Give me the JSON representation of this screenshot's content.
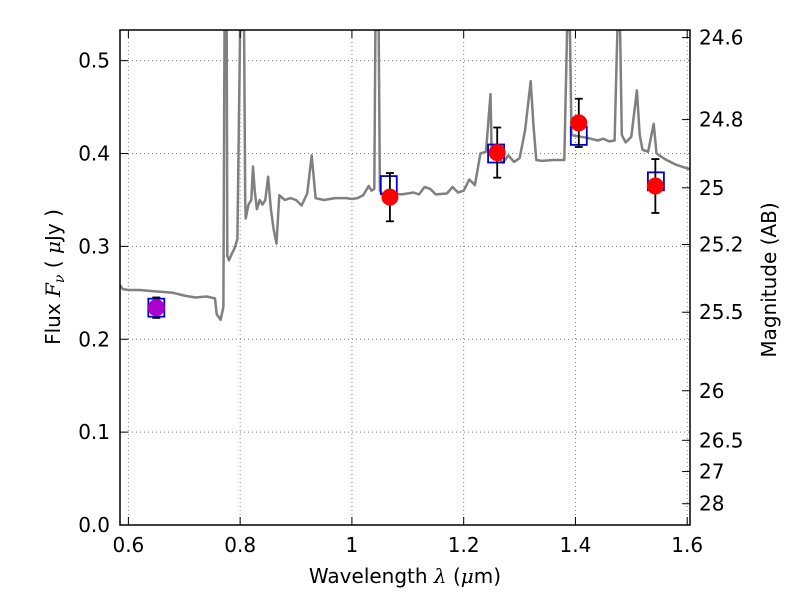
{
  "chart_data": {
    "type": "line",
    "xlabel": {
      "pre": "Wavelength ",
      "sym": "λ",
      "open": " (",
      "mu": "μ",
      "unit": "m)"
    },
    "ylabel": {
      "pre": "Flux ",
      "sym": "F",
      "sub": "ν",
      "open": " ( ",
      "mu": "μ",
      "unit": "Jy )"
    },
    "y2label": "Magnitude (AB)",
    "xlim": [
      0.585,
      1.605
    ],
    "ylim": [
      0.0,
      0.533
    ],
    "grid": true,
    "x_ticks": [
      {
        "value": 0.6,
        "label": "0.6"
      },
      {
        "value": 0.8,
        "label": "0.8"
      },
      {
        "value": 1.0,
        "label": "1"
      },
      {
        "value": 1.2,
        "label": "1.2"
      },
      {
        "value": 1.4,
        "label": "1.4"
      },
      {
        "value": 1.6,
        "label": "1.6"
      }
    ],
    "y_ticks": [
      {
        "value": 0.0,
        "label": "0.0"
      },
      {
        "value": 0.1,
        "label": "0.1"
      },
      {
        "value": 0.2,
        "label": "0.2"
      },
      {
        "value": 0.3,
        "label": "0.3"
      },
      {
        "value": 0.4,
        "label": "0.4"
      },
      {
        "value": 0.5,
        "label": "0.5"
      }
    ],
    "y2_ticks": [
      {
        "mag": 24.6,
        "label": "24.6"
      },
      {
        "mag": 24.8,
        "label": "24.8"
      },
      {
        "mag": 25.0,
        "label": "25"
      },
      {
        "mag": 25.2,
        "label": "25.2"
      },
      {
        "mag": 25.5,
        "label": "25.5"
      },
      {
        "mag": 26.0,
        "label": "26"
      },
      {
        "mag": 26.5,
        "label": "26.5"
      },
      {
        "mag": 27.0,
        "label": "27"
      },
      {
        "mag": 28.0,
        "label": "28"
      }
    ],
    "colors": {
      "model": "#808080",
      "model_photometry": "#0000cc",
      "observed": "#ff0000",
      "observed_violet": "#aa00cc",
      "errorbar": "#000000",
      "grid": "#7f7f7f"
    },
    "model_spectrum": [
      [
        0.585,
        0.258
      ],
      [
        0.59,
        0.254
      ],
      [
        0.6,
        0.253
      ],
      [
        0.62,
        0.253
      ],
      [
        0.64,
        0.252
      ],
      [
        0.66,
        0.251
      ],
      [
        0.68,
        0.25
      ],
      [
        0.7,
        0.247
      ],
      [
        0.72,
        0.245
      ],
      [
        0.74,
        0.246
      ],
      [
        0.755,
        0.244
      ],
      [
        0.758,
        0.227
      ],
      [
        0.765,
        0.221
      ],
      [
        0.77,
        0.235
      ],
      [
        0.772,
        0.533
      ],
      [
        0.776,
        0.533
      ],
      [
        0.777,
        0.29
      ],
      [
        0.78,
        0.285
      ],
      [
        0.785,
        0.292
      ],
      [
        0.79,
        0.298
      ],
      [
        0.795,
        0.308
      ],
      [
        0.8,
        0.533
      ],
      [
        0.807,
        0.533
      ],
      [
        0.809,
        0.35
      ],
      [
        0.81,
        0.33
      ],
      [
        0.815,
        0.345
      ],
      [
        0.82,
        0.35
      ],
      [
        0.823,
        0.386
      ],
      [
        0.826,
        0.36
      ],
      [
        0.83,
        0.34
      ],
      [
        0.835,
        0.35
      ],
      [
        0.84,
        0.345
      ],
      [
        0.845,
        0.35
      ],
      [
        0.85,
        0.375
      ],
      [
        0.855,
        0.34
      ],
      [
        0.86,
        0.318
      ],
      [
        0.865,
        0.303
      ],
      [
        0.87,
        0.355
      ],
      [
        0.88,
        0.35
      ],
      [
        0.89,
        0.352
      ],
      [
        0.9,
        0.35
      ],
      [
        0.91,
        0.344
      ],
      [
        0.92,
        0.357
      ],
      [
        0.928,
        0.398
      ],
      [
        0.935,
        0.352
      ],
      [
        0.95,
        0.35
      ],
      [
        0.97,
        0.352
      ],
      [
        0.99,
        0.352
      ],
      [
        1.0,
        0.351
      ],
      [
        1.01,
        0.352
      ],
      [
        1.02,
        0.355
      ],
      [
        1.03,
        0.365
      ],
      [
        1.035,
        0.36
      ],
      [
        1.04,
        0.362
      ],
      [
        1.042,
        0.533
      ],
      [
        1.048,
        0.533
      ],
      [
        1.05,
        0.36
      ],
      [
        1.055,
        0.356
      ],
      [
        1.07,
        0.357
      ],
      [
        1.09,
        0.356
      ],
      [
        1.11,
        0.358
      ],
      [
        1.12,
        0.356
      ],
      [
        1.13,
        0.364
      ],
      [
        1.14,
        0.362
      ],
      [
        1.15,
        0.356
      ],
      [
        1.17,
        0.357
      ],
      [
        1.18,
        0.364
      ],
      [
        1.19,
        0.358
      ],
      [
        1.2,
        0.36
      ],
      [
        1.21,
        0.372
      ],
      [
        1.22,
        0.366
      ],
      [
        1.23,
        0.4
      ],
      [
        1.24,
        0.402
      ],
      [
        1.248,
        0.464
      ],
      [
        1.25,
        0.405
      ],
      [
        1.26,
        0.396
      ],
      [
        1.27,
        0.39
      ],
      [
        1.28,
        0.398
      ],
      [
        1.29,
        0.391
      ],
      [
        1.3,
        0.395
      ],
      [
        1.31,
        0.425
      ],
      [
        1.32,
        0.478
      ],
      [
        1.325,
        0.43
      ],
      [
        1.33,
        0.393
      ],
      [
        1.34,
        0.392
      ],
      [
        1.36,
        0.393
      ],
      [
        1.38,
        0.393
      ],
      [
        1.385,
        0.533
      ],
      [
        1.39,
        0.533
      ],
      [
        1.393,
        0.42
      ],
      [
        1.4,
        0.419
      ],
      [
        1.42,
        0.417
      ],
      [
        1.44,
        0.414
      ],
      [
        1.45,
        0.416
      ],
      [
        1.46,
        0.413
      ],
      [
        1.47,
        0.414
      ],
      [
        1.475,
        0.533
      ],
      [
        1.48,
        0.533
      ],
      [
        1.483,
        0.42
      ],
      [
        1.49,
        0.412
      ],
      [
        1.5,
        0.418
      ],
      [
        1.51,
        0.468
      ],
      [
        1.515,
        0.42
      ],
      [
        1.52,
        0.404
      ],
      [
        1.53,
        0.402
      ],
      [
        1.54,
        0.432
      ],
      [
        1.545,
        0.4
      ],
      [
        1.56,
        0.394
      ],
      [
        1.58,
        0.388
      ],
      [
        1.605,
        0.383
      ]
    ],
    "model_photometry": [
      {
        "x": 0.65,
        "y": 0.234
      },
      {
        "x": 1.066,
        "y": 0.366
      },
      {
        "x": 1.258,
        "y": 0.4
      },
      {
        "x": 1.406,
        "y": 0.419
      },
      {
        "x": 1.544,
        "y": 0.37
      }
    ],
    "observed": [
      {
        "x": 0.65,
        "y": 0.234,
        "err": 0.011,
        "color": "violet"
      },
      {
        "x": 1.068,
        "y": 0.353,
        "err": 0.026,
        "color": "red"
      },
      {
        "x": 1.26,
        "y": 0.401,
        "err": 0.027,
        "color": "red"
      },
      {
        "x": 1.406,
        "y": 0.433,
        "err": 0.026,
        "color": "red"
      },
      {
        "x": 1.543,
        "y": 0.365,
        "err": 0.029,
        "color": "red"
      }
    ]
  }
}
